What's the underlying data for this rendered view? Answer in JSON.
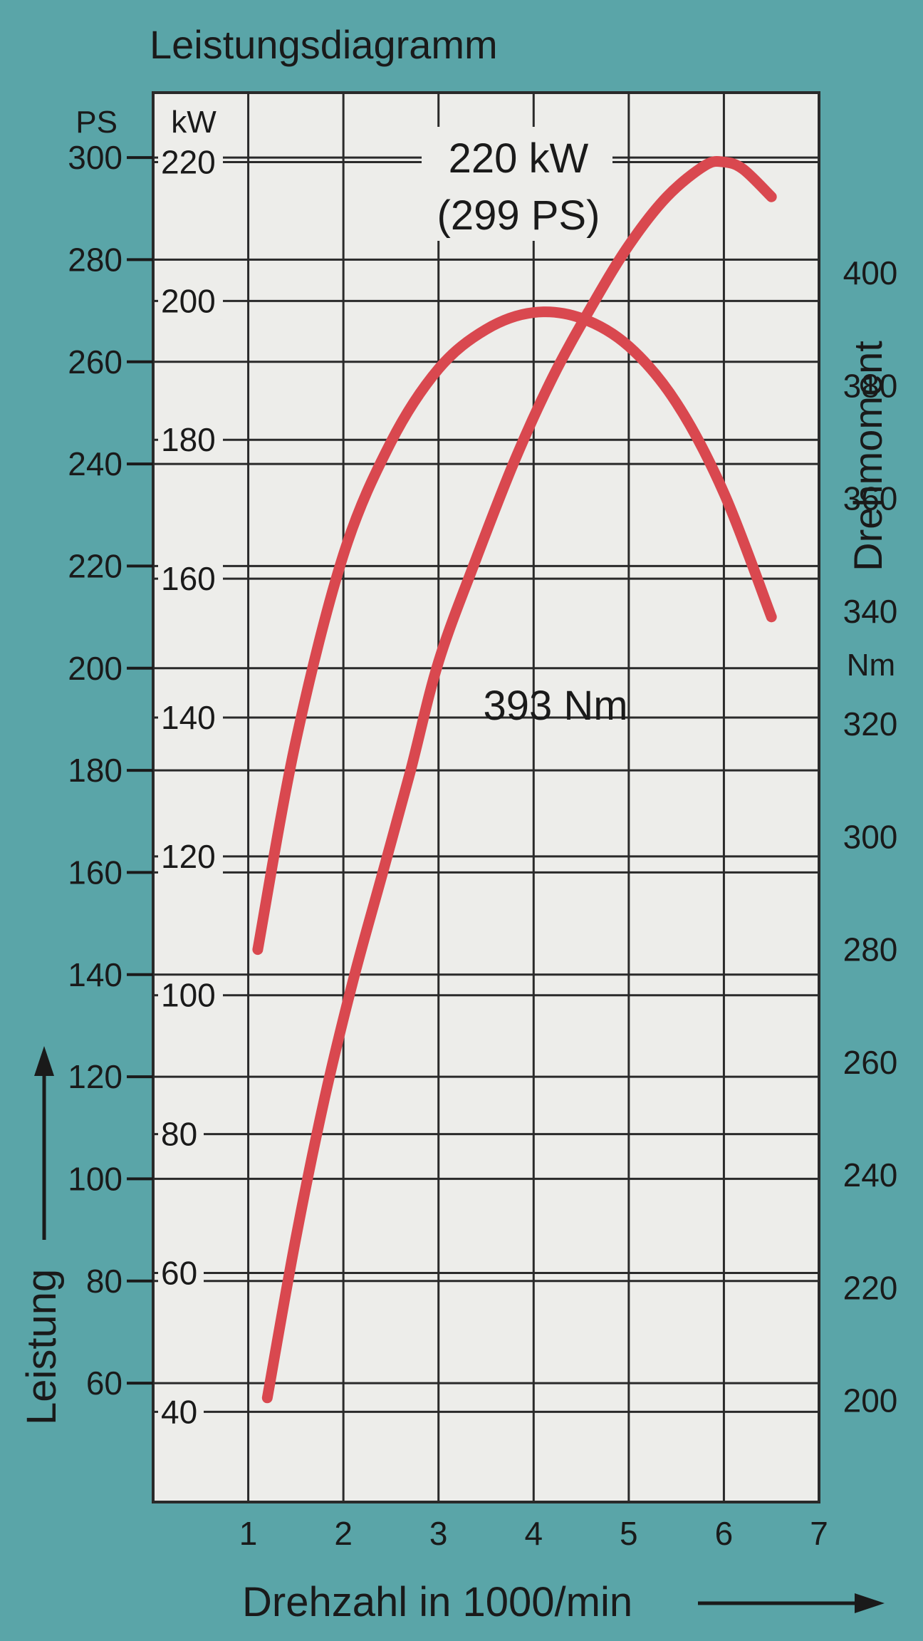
{
  "chart_data": {
    "type": "line",
    "title": "Leistungsdiagramm",
    "xlabel": "Drehzahl in 1000/min",
    "xlim": [
      0,
      7
    ],
    "xticks": [
      1,
      2,
      3,
      4,
      5,
      6,
      7
    ],
    "ylabel": "Leistung",
    "y_left_outer_unit": "PS",
    "y_left_outer_ticks": [
      60,
      80,
      100,
      120,
      140,
      160,
      180,
      200,
      220,
      240,
      260,
      280,
      300
    ],
    "y_left_inner_unit": "kW",
    "y_left_inner_ticks": [
      40,
      60,
      80,
      100,
      120,
      140,
      160,
      180,
      200,
      220
    ],
    "ylim_kw": [
      27,
      230
    ],
    "y2label": "Drehmoment",
    "y2_unit": "Nm",
    "y2_ticks": [
      200,
      220,
      240,
      260,
      280,
      300,
      320,
      340,
      360,
      380,
      400
    ],
    "ylim_nm": [
      182,
      432
    ],
    "grid": true,
    "series": [
      {
        "axis": "kW",
        "color": "#d9484f",
        "x": [
          1.2,
          1.5,
          1.8,
          2.1,
          2.4,
          2.7,
          3.0,
          3.4,
          3.8,
          4.2,
          4.6,
          5.0,
          5.4,
          5.8,
          6.0,
          6.2,
          6.5
        ],
        "values": [
          42,
          65,
          85,
          102,
          117,
          132,
          148,
          163,
          177,
          189,
          199,
          208,
          215,
          219.5,
          220,
          219,
          215
        ]
      },
      {
        "axis": "Nm",
        "color": "#d9484f",
        "x": [
          1.1,
          1.5,
          2.0,
          2.5,
          3.0,
          3.5,
          4.0,
          4.5,
          5.0,
          5.5,
          6.0,
          6.5
        ],
        "values": [
          280,
          317,
          350,
          370,
          383,
          390,
          393,
          392,
          387,
          377,
          361,
          339
        ]
      }
    ],
    "annotations": [
      {
        "line1": "220 kW",
        "line2": "(299 PS)"
      },
      {
        "line1": "393 Nm"
      }
    ]
  }
}
